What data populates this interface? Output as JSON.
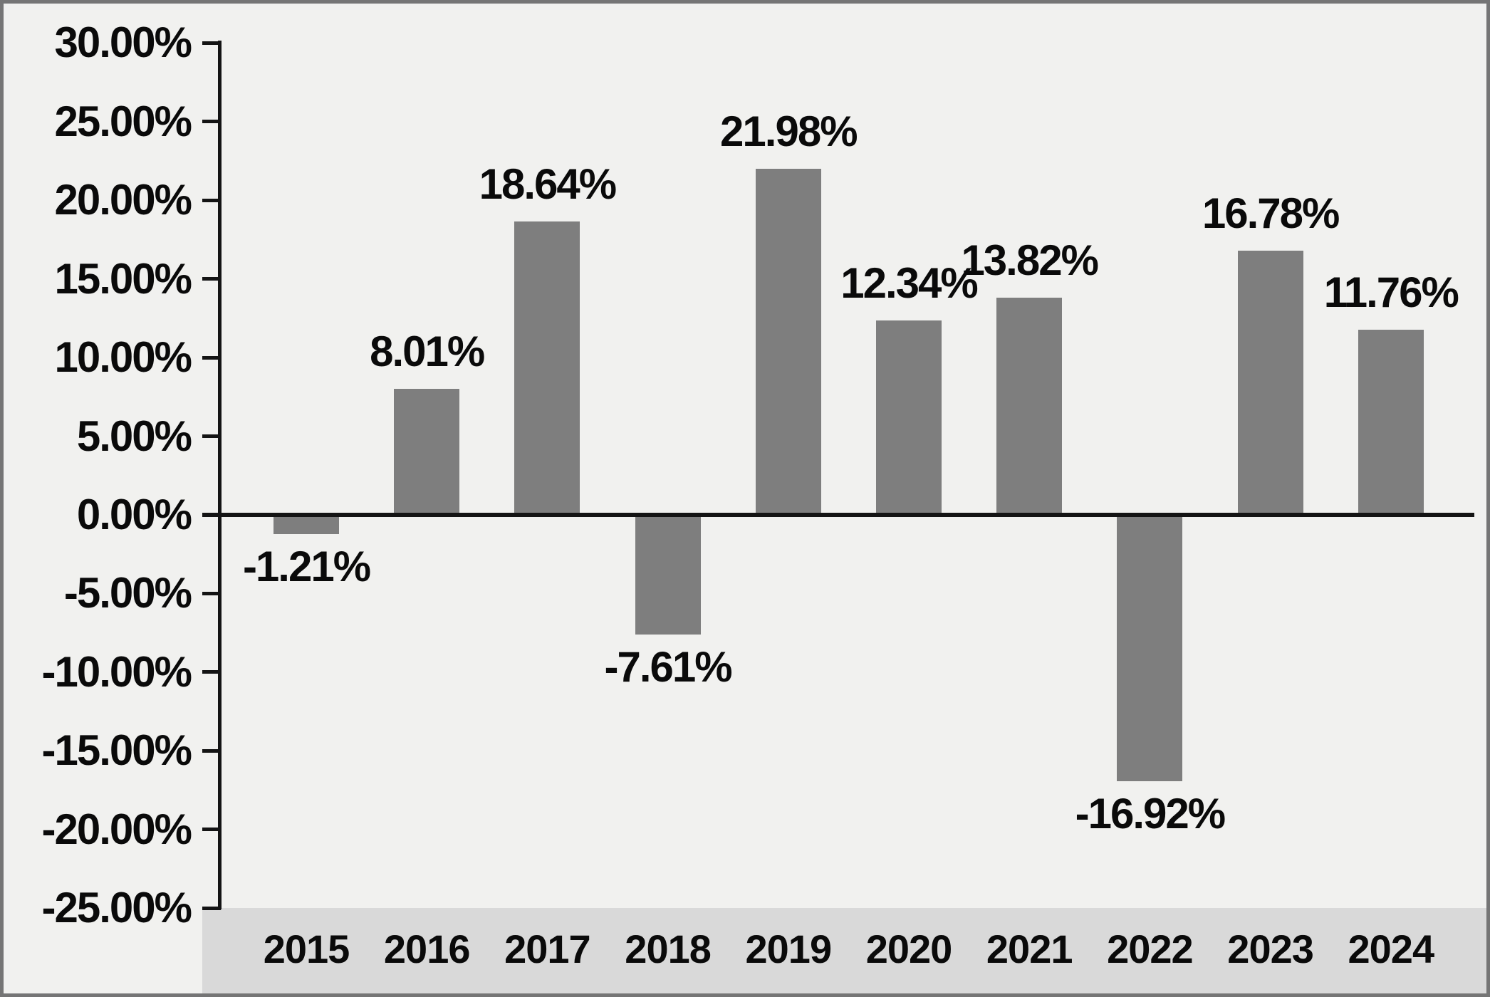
{
  "chart_data": {
    "type": "bar",
    "title": "",
    "xlabel": "",
    "ylabel": "",
    "grid": false,
    "legend": null,
    "categories": [
      "2015",
      "2016",
      "2017",
      "2018",
      "2019",
      "2020",
      "2021",
      "2022",
      "2023",
      "2024"
    ],
    "values": [
      -1.21,
      8.01,
      18.64,
      -7.61,
      21.98,
      12.34,
      13.82,
      -16.92,
      16.78,
      11.76
    ],
    "value_labels": [
      "-1.21%",
      "8.01%",
      "18.64%",
      "-7.61%",
      "21.98%",
      "12.34%",
      "13.82%",
      "-16.92%",
      "16.78%",
      "11.76%"
    ],
    "y_axis": {
      "min": -25,
      "max": 30,
      "step": 5,
      "tick_values": [
        30,
        25,
        20,
        15,
        10,
        5,
        0,
        -5,
        -10,
        -15,
        -20,
        -25
      ],
      "tick_labels": [
        "30.00%",
        "25.00%",
        "20.00%",
        "15.00%",
        "10.00%",
        "5.00%",
        "0.00%",
        "-5.00%",
        "-10.00%",
        "-15.00%",
        "-20.00%",
        "-25.00%"
      ]
    },
    "colors": {
      "bar": "#7e7e7e",
      "background": "#f1f1ef",
      "x_band": "#d9d9d9",
      "axis_line": "#141414",
      "label_text": "#0a0a0a",
      "border": "#757575"
    }
  }
}
